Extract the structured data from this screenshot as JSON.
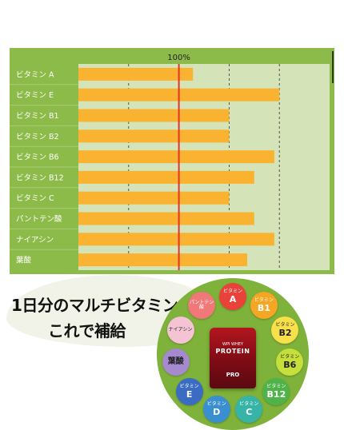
{
  "chart_data": {
    "type": "bar",
    "orientation": "horizontal",
    "categories": [
      "ビタミン A",
      "ビタミン E",
      "ビタミン B1",
      "ビタミン B2",
      "ビタミン B6",
      "ビタミン B12",
      "ビタミン C",
      "パントテン酸",
      "ナイアシン",
      "葉酸"
    ],
    "values": [
      114,
      200,
      150,
      150,
      195,
      175,
      150,
      175,
      195,
      168
    ],
    "xlim": [
      0,
      250
    ],
    "gridlines": [
      50,
      150,
      200
    ],
    "reference_value": 100,
    "reference_label": "100%",
    "title": "",
    "xlabel": "",
    "ylabel": "",
    "grid": true,
    "legend": "none"
  },
  "colors": {
    "panel": "#8dbb49",
    "plot_bg": "#d4e3b8",
    "bar": "#f9b331",
    "reference_line": "#e5322a",
    "wheel": "#7fb23a"
  },
  "slogan": {
    "line1": "1日分のマルチビタミン",
    "line2": "これで補給"
  },
  "product": {
    "line1": "WPI WHEY",
    "line2": "PROTEIN",
    "line3": "PRO"
  },
  "vitamins": [
    {
      "top": "ビタミン",
      "big": "A",
      "color": "#e8423a",
      "text": "#ffffff"
    },
    {
      "top": "ビタミン",
      "big": "B1",
      "color": "#f5a623",
      "text": "#ffffff"
    },
    {
      "top": "ビタミン",
      "big": "B2",
      "color": "#f7e04a",
      "text": "#222222"
    },
    {
      "top": "ビタミン",
      "big": "B6",
      "color": "#c6df3a",
      "text": "#222222"
    },
    {
      "top": "ビタミン",
      "big": "B12",
      "color": "#4fb34a",
      "text": "#ffffff"
    },
    {
      "top": "ビタミン",
      "big": "C",
      "color": "#38b3a8",
      "text": "#ffffff"
    },
    {
      "top": "ビタミン",
      "big": "D",
      "color": "#3a8fd0",
      "text": "#ffffff"
    },
    {
      "top": "ビタミン",
      "big": "E",
      "color": "#3a6cc4",
      "text": "#ffffff"
    },
    {
      "top": "",
      "big": "葉酸",
      "color": "#a58ad0",
      "text": "#222222"
    },
    {
      "top": "ナイアシン",
      "big": "",
      "color": "#f4c3d4",
      "text": "#222222"
    },
    {
      "top": "パントテン酸",
      "big": "",
      "color": "#f07878",
      "text": "#ffffff"
    }
  ]
}
